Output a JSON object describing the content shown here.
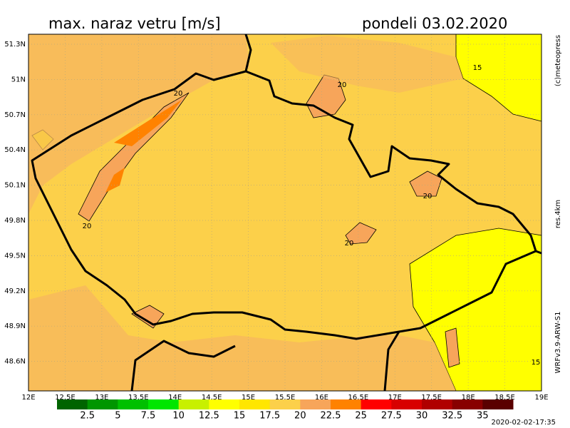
{
  "header": {
    "title": "max. naraz vetru [m/s]",
    "date": "pondeli 03.02.2020"
  },
  "map": {
    "lat_labels": [
      "51.3N",
      "51N",
      "50.7N",
      "50.4N",
      "50.1N",
      "49.8N",
      "49.5N",
      "49.2N",
      "48.9N",
      "48.6N"
    ],
    "lon_labels": [
      "12E",
      "12.5E",
      "13E",
      "13.5E",
      "14E",
      "14.5E",
      "15E",
      "15.5E",
      "16E",
      "16.5E",
      "17E",
      "17.5E",
      "18E",
      "18.5E",
      "19E"
    ],
    "contour_labels": [
      "20",
      "20",
      "20",
      "20",
      "20",
      "15",
      "15"
    ]
  },
  "side": {
    "credit": "(c)meteopress",
    "resolution": "res.4km",
    "model": "WRFv3.9-ARW-S1"
  },
  "legend": {
    "colors": [
      "#006400",
      "#009600",
      "#00c000",
      "#00e600",
      "#c8f000",
      "#ffff00",
      "#ffe600",
      "#fcd04a",
      "#f7a55a",
      "#ff8200",
      "#ff0000",
      "#d80000",
      "#b00000",
      "#880000",
      "#5a0000"
    ],
    "labels": [
      "2.5",
      "5",
      "7.5",
      "10",
      "12.5",
      "15",
      "17.5",
      "20",
      "22.5",
      "25",
      "27.5",
      "30",
      "32.5",
      "35"
    ]
  },
  "footer": {
    "timestamp": "2020-02-02-17:35"
  }
}
